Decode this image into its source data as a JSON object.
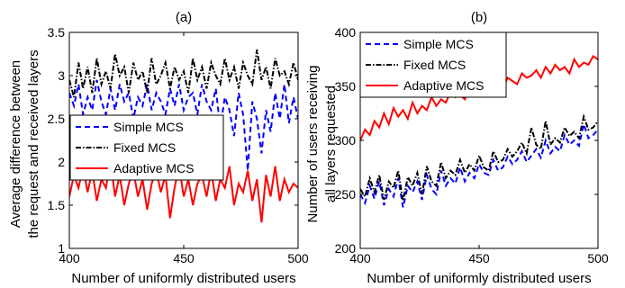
{
  "series_styles": [
    {
      "color": "#0000ff",
      "dash": "6,4"
    },
    {
      "color": "#000000",
      "dash": "6,2,1.5,2"
    },
    {
      "color": "#ff0000",
      "dash": ""
    }
  ],
  "chart_data": [
    {
      "type": "line",
      "title": "(a)",
      "xlabel": "Number of uniformly distributed users",
      "ylabel": [
        "Average difference between",
        "the request and received layers"
      ],
      "xlim": [
        400,
        500
      ],
      "ylim": [
        1,
        3.5
      ],
      "xticks": [
        "400",
        "450",
        "500"
      ],
      "yticks": [
        "1",
        "1.5",
        "2",
        "2.5",
        "3",
        "3.5"
      ],
      "legend_position": "middle-left",
      "x": [
        400,
        402,
        404,
        406,
        408,
        410,
        412,
        414,
        416,
        418,
        420,
        422,
        424,
        426,
        428,
        430,
        432,
        434,
        436,
        438,
        440,
        442,
        444,
        446,
        448,
        450,
        452,
        454,
        456,
        458,
        460,
        462,
        464,
        466,
        468,
        470,
        472,
        474,
        476,
        478,
        480,
        482,
        484,
        486,
        488,
        490,
        492,
        494,
        496,
        498,
        500
      ],
      "series": [
        {
          "name": "Simple MCS",
          "values": [
            2.8,
            2.65,
            2.9,
            2.55,
            2.75,
            2.6,
            2.95,
            2.7,
            2.55,
            2.85,
            2.6,
            2.9,
            2.7,
            2.8,
            2.5,
            2.75,
            2.65,
            2.9,
            2.6,
            2.8,
            2.7,
            2.55,
            2.85,
            2.65,
            2.9,
            2.6,
            2.75,
            2.8,
            2.55,
            2.9,
            2.7,
            2.6,
            2.85,
            2.4,
            2.75,
            2.6,
            2.3,
            2.8,
            2.55,
            1.9,
            2.7,
            2.5,
            2.1,
            2.6,
            2.35,
            2.8,
            2.5,
            2.9,
            2.45,
            2.75,
            2.5
          ]
        },
        {
          "name": "Fixed MCS",
          "values": [
            2.95,
            2.75,
            3.15,
            2.85,
            3.1,
            2.8,
            3.2,
            2.9,
            3.05,
            2.85,
            3.25,
            3.0,
            3.1,
            2.8,
            3.15,
            2.95,
            3.05,
            2.8,
            3.2,
            2.9,
            3.0,
            3.15,
            2.85,
            3.1,
            2.95,
            3.05,
            2.8,
            3.2,
            2.95,
            3.1,
            2.85,
            3.15,
            3.0,
            2.9,
            3.2,
            2.95,
            3.1,
            2.85,
            3.15,
            3.0,
            2.9,
            3.3,
            2.95,
            3.1,
            2.85,
            3.2,
            3.0,
            3.05,
            2.9,
            3.15,
            2.95
          ]
        },
        {
          "name": "Adaptive MCS",
          "values": [
            1.6,
            1.85,
            1.7,
            1.95,
            1.65,
            1.9,
            1.55,
            1.8,
            1.7,
            2.0,
            1.6,
            1.85,
            1.5,
            1.75,
            1.9,
            1.6,
            1.8,
            1.45,
            1.75,
            1.9,
            1.65,
            1.85,
            1.35,
            1.7,
            1.95,
            1.6,
            1.8,
            1.5,
            1.75,
            1.85,
            1.6,
            1.9,
            1.55,
            1.8,
            1.7,
            1.95,
            1.5,
            1.75,
            1.65,
            1.9,
            1.55,
            1.8,
            1.3,
            1.85,
            1.6,
            1.95,
            1.55,
            1.8,
            1.65,
            1.75,
            1.7
          ]
        }
      ]
    },
    {
      "type": "line",
      "title": "(b)",
      "xlabel": "Number of uniformly distributed users",
      "ylabel": [
        "Number of users receiving",
        "all layers requested"
      ],
      "xlim": [
        400,
        500
      ],
      "ylim": [
        200,
        400
      ],
      "xticks": [
        "400",
        "450",
        "500"
      ],
      "yticks": [
        "200",
        "250",
        "300",
        "350",
        "400"
      ],
      "legend_position": "top-left",
      "x": [
        400,
        402,
        404,
        406,
        408,
        410,
        412,
        414,
        416,
        418,
        420,
        422,
        424,
        426,
        428,
        430,
        432,
        434,
        436,
        438,
        440,
        442,
        444,
        446,
        448,
        450,
        452,
        454,
        456,
        458,
        460,
        462,
        464,
        466,
        468,
        470,
        472,
        474,
        476,
        478,
        480,
        482,
        484,
        486,
        488,
        490,
        492,
        494,
        496,
        498,
        500
      ],
      "series": [
        {
          "name": "Simple MCS",
          "values": [
            250,
            242,
            258,
            246,
            262,
            240,
            255,
            248,
            265,
            238,
            258,
            252,
            262,
            245,
            268,
            255,
            250,
            272,
            258,
            265,
            260,
            275,
            262,
            270,
            265,
            278,
            270,
            268,
            282,
            272,
            275,
            285,
            278,
            282,
            290,
            280,
            286,
            292,
            284,
            300,
            288,
            294,
            290,
            305,
            296,
            300,
            295,
            315,
            302,
            305,
            310
          ]
        },
        {
          "name": "Fixed MCS",
          "values": [
            255,
            248,
            265,
            252,
            268,
            245,
            262,
            256,
            272,
            244,
            266,
            258,
            270,
            250,
            276,
            262,
            258,
            280,
            265,
            272,
            268,
            282,
            270,
            278,
            272,
            286,
            275,
            272,
            290,
            280,
            282,
            292,
            285,
            290,
            298,
            288,
            312,
            296,
            292,
            318,
            296,
            302,
            298,
            312,
            304,
            308,
            302,
            322,
            310,
            312,
            318
          ]
        },
        {
          "name": "Adaptive MCS",
          "values": [
            300,
            310,
            305,
            318,
            312,
            325,
            315,
            330,
            322,
            328,
            320,
            335,
            325,
            332,
            328,
            340,
            332,
            338,
            335,
            345,
            340,
            342,
            338,
            350,
            345,
            348,
            342,
            355,
            350,
            352,
            348,
            358,
            355,
            352,
            362,
            358,
            360,
            365,
            358,
            368,
            362,
            370,
            365,
            368,
            362,
            375,
            368,
            372,
            370,
            378,
            375
          ]
        }
      ]
    }
  ]
}
